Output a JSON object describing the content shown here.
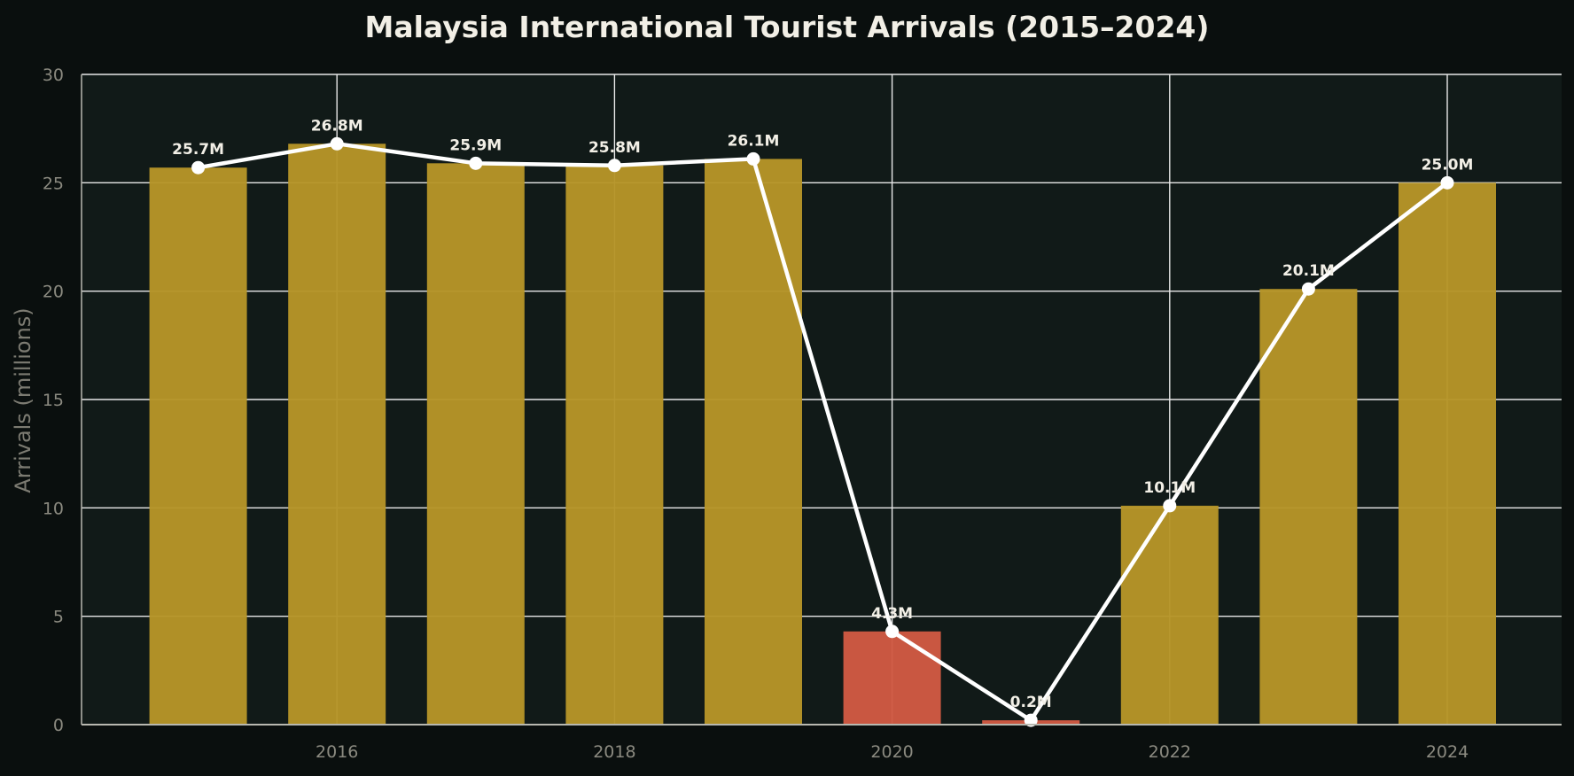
{
  "chart_data": {
    "type": "bar",
    "title": "Malaysia International Tourist Arrivals (2015–2024)",
    "xlabel": "",
    "ylabel": "Arrivals (millions)",
    "ylim": [
      0,
      30
    ],
    "yticks": [
      "0",
      "5",
      "10",
      "15",
      "20",
      "25",
      "30"
    ],
    "xticks": [
      "2016",
      "2018",
      "2020",
      "2022",
      "2024"
    ],
    "categories": [
      "2015",
      "2016",
      "2017",
      "2018",
      "2019",
      "2020",
      "2021",
      "2022",
      "2023",
      "2024"
    ],
    "values": [
      25.7,
      26.8,
      25.9,
      25.8,
      26.1,
      4.3,
      0.2,
      10.1,
      20.1,
      25.0
    ],
    "labels": [
      "25.7M",
      "26.8M",
      "25.9M",
      "25.8M",
      "26.1M",
      "4.3M",
      "0.2M",
      "10.1M",
      "20.1M",
      "25.0M"
    ],
    "highlight_years": [
      "2020",
      "2021"
    ],
    "overlay": "line",
    "grid": true,
    "colors": {
      "background": "#0a0f0e",
      "plot_background": "#111a18",
      "bar": "#b69528",
      "bar_highlight": "#cf5a43",
      "line": "#ffffff",
      "grid": "#e8e8e8"
    }
  }
}
